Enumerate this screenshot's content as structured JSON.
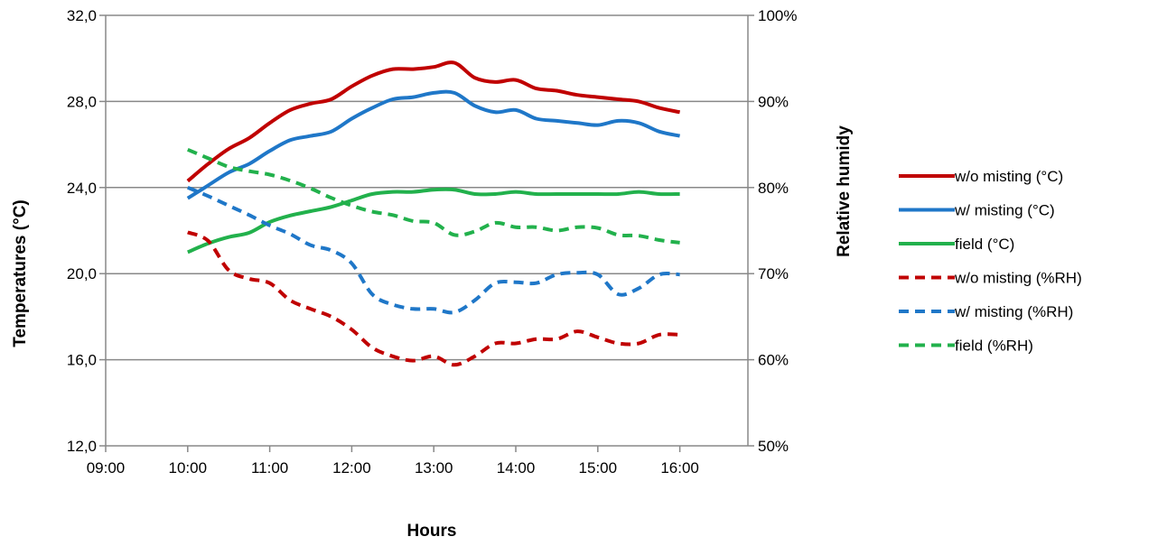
{
  "chart_data": {
    "type": "line",
    "title": "",
    "xlabel": "Hours",
    "ylabel_left": "Temperatures (°C)",
    "ylabel_right": "Relative humidy",
    "x_range_hours": [
      9,
      16.83
    ],
    "x_ticks": [
      "09:00",
      "10:00",
      "11:00",
      "12:00",
      "13:00",
      "14:00",
      "15:00",
      "16:00"
    ],
    "y_left_range": [
      12,
      32
    ],
    "y_left_ticks": [
      "12,0",
      "16,0",
      "20,0",
      "24,0",
      "28,0",
      "32,0"
    ],
    "y_right_range": [
      50,
      100
    ],
    "y_right_ticks": [
      "50%",
      "60%",
      "70%",
      "80%",
      "90%",
      "100%"
    ],
    "grid": "horizontal",
    "legend_position": "right",
    "x": [
      "10:00",
      "10:15",
      "10:30",
      "10:45",
      "11:00",
      "11:15",
      "11:30",
      "11:45",
      "12:00",
      "12:15",
      "12:30",
      "12:45",
      "13:00",
      "13:15",
      "13:30",
      "13:45",
      "14:00",
      "14:15",
      "14:30",
      "14:45",
      "15:00",
      "15:15",
      "15:30",
      "15:45",
      "16:00"
    ],
    "series": [
      {
        "name": "w/o misting (°C)",
        "axis": "left",
        "color": "#c00000",
        "dash": false,
        "values": [
          24.3,
          25.1,
          25.8,
          26.3,
          27.0,
          27.6,
          27.9,
          28.1,
          28.7,
          29.2,
          29.5,
          29.5,
          29.6,
          29.8,
          29.1,
          28.9,
          29.0,
          28.6,
          28.5,
          28.3,
          28.2,
          28.1,
          28.0,
          27.7,
          27.5
        ]
      },
      {
        "name": "w/ misting (°C)",
        "axis": "left",
        "color": "#1f77c8",
        "dash": false,
        "values": [
          23.5,
          24.1,
          24.7,
          25.1,
          25.7,
          26.2,
          26.4,
          26.6,
          27.2,
          27.7,
          28.1,
          28.2,
          28.4,
          28.4,
          27.8,
          27.5,
          27.6,
          27.2,
          27.1,
          27.0,
          26.9,
          27.1,
          27.0,
          26.6,
          26.4
        ]
      },
      {
        "name": "field (°C)",
        "axis": "left",
        "color": "#22b14c",
        "dash": false,
        "values": [
          21.0,
          21.4,
          21.7,
          21.9,
          22.4,
          22.7,
          22.9,
          23.1,
          23.4,
          23.7,
          23.8,
          23.8,
          23.9,
          23.9,
          23.7,
          23.7,
          23.8,
          23.7,
          23.7,
          23.7,
          23.7,
          23.7,
          23.8,
          23.7,
          23.7
        ]
      },
      {
        "name": "w/o misting (%RH)",
        "axis": "right",
        "color": "#c00000",
        "dash": true,
        "values": [
          74.8,
          73.8,
          70.4,
          69.4,
          68.9,
          66.9,
          65.9,
          65.0,
          63.5,
          61.4,
          60.4,
          59.9,
          60.4,
          59.4,
          60.4,
          61.9,
          61.9,
          62.4,
          62.4,
          63.3,
          62.6,
          61.9,
          61.9,
          62.9,
          62.9
        ]
      },
      {
        "name": "w/ misting (%RH)",
        "axis": "right",
        "color": "#1f77c8",
        "dash": true,
        "values": [
          80.0,
          79.0,
          77.9,
          76.8,
          75.6,
          74.6,
          73.3,
          72.7,
          71.2,
          67.6,
          66.4,
          65.9,
          65.9,
          65.5,
          66.9,
          68.9,
          69.0,
          68.9,
          69.9,
          70.1,
          69.9,
          67.6,
          68.3,
          69.9,
          69.9
        ]
      },
      {
        "name": "field (%RH)",
        "axis": "right",
        "color": "#22b14c",
        "dash": true,
        "values": [
          84.4,
          83.4,
          82.4,
          81.9,
          81.5,
          80.8,
          79.9,
          78.8,
          77.9,
          77.2,
          76.8,
          76.1,
          75.9,
          74.5,
          74.9,
          75.9,
          75.4,
          75.4,
          75.0,
          75.4,
          75.3,
          74.5,
          74.4,
          73.9,
          73.6
        ]
      }
    ]
  }
}
